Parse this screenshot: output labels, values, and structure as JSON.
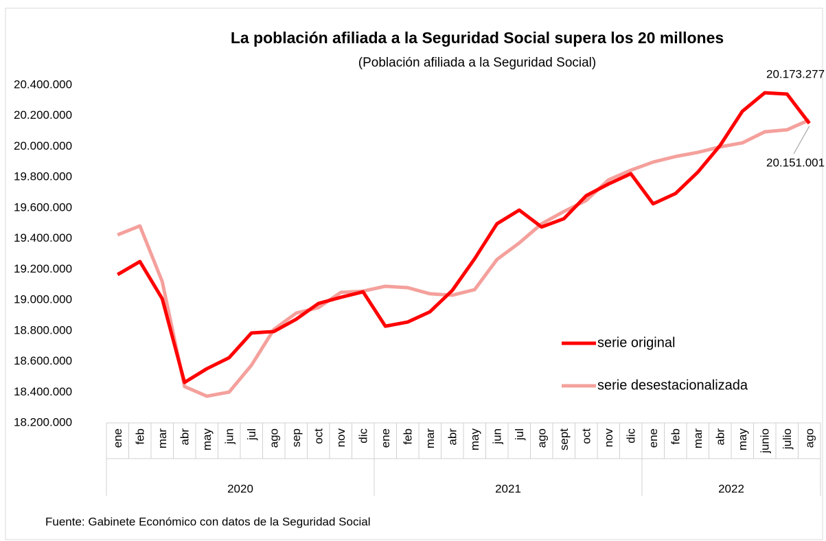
{
  "chart_data": {
    "type": "line",
    "title": "La población afiliada a la Seguridad Social supera los 20 millones",
    "subtitle": "(Población afiliada a la Seguridad Social)",
    "source": "Fuente: Gabinete Económico con datos de la Seguridad Social",
    "groups": [
      {
        "name": "2020",
        "categories": [
          "ene",
          "feb",
          "mar",
          "abr",
          "may",
          "jun",
          "jul",
          "ago",
          "sep",
          "oct",
          "nov",
          "dic"
        ]
      },
      {
        "name": "2021",
        "categories": [
          "ene",
          "feb",
          "mar",
          "abr",
          "may",
          "jun",
          "jul",
          "ago",
          "sept",
          "oct",
          "nov",
          "dic"
        ]
      },
      {
        "name": "2022",
        "categories": [
          "ene",
          "feb",
          "mar",
          "abr",
          "may",
          "junio",
          "julio",
          "ago"
        ]
      }
    ],
    "series": [
      {
        "name": "serie original",
        "color": "#ff0000",
        "values": [
          19166000,
          19251000,
          19009000,
          18464000,
          18553000,
          18625000,
          18786000,
          18795000,
          18875000,
          18978000,
          19018000,
          19054000,
          18830000,
          18857000,
          18924000,
          19063000,
          19269000,
          19497000,
          19586000,
          19476000,
          19530000,
          19680000,
          19756000,
          19823000,
          19627000,
          19694000,
          19833000,
          20007000,
          20230000,
          20350000,
          20342000,
          20151001
        ],
        "value_labels": [
          null,
          null,
          null,
          null,
          null,
          null,
          null,
          null,
          null,
          null,
          null,
          null,
          null,
          null,
          null,
          null,
          null,
          null,
          null,
          null,
          null,
          null,
          null,
          null,
          null,
          null,
          null,
          null,
          null,
          null,
          null,
          "20.151.001"
        ]
      },
      {
        "name": "serie desestacionalizada",
        "color": "#f4a09c",
        "values": [
          19425000,
          19483000,
          19121000,
          18437000,
          18374000,
          18401000,
          18576000,
          18808000,
          18915000,
          18951000,
          19050000,
          19058000,
          19090000,
          19081000,
          19041000,
          19032000,
          19068000,
          19264000,
          19372000,
          19497000,
          19577000,
          19649000,
          19783000,
          19846000,
          19899000,
          19935000,
          19962000,
          19998000,
          20024000,
          20096000,
          20109000,
          20173277
        ],
        "value_labels": [
          null,
          null,
          null,
          null,
          null,
          null,
          null,
          null,
          null,
          null,
          null,
          null,
          null,
          null,
          null,
          null,
          null,
          null,
          null,
          null,
          null,
          null,
          null,
          null,
          null,
          null,
          null,
          null,
          null,
          null,
          null,
          "20.173.277"
        ]
      }
    ],
    "ylim": [
      18200000,
      20400000
    ],
    "yticks": [
      {
        "value": 18200000,
        "label": "18.200.000"
      },
      {
        "value": 18400000,
        "label": "18.400.000"
      },
      {
        "value": 18600000,
        "label": "18.600.000"
      },
      {
        "value": 18800000,
        "label": "18.800.000"
      },
      {
        "value": 19000000,
        "label": "19.000.000"
      },
      {
        "value": 19200000,
        "label": "19.200.000"
      },
      {
        "value": 19400000,
        "label": "19.400.000"
      },
      {
        "value": 19600000,
        "label": "19.600.000"
      },
      {
        "value": 19800000,
        "label": "19.800.000"
      },
      {
        "value": 20000000,
        "label": "20.000.000"
      },
      {
        "value": 20200000,
        "label": "20.200.000"
      },
      {
        "value": 20400000,
        "label": "20.400.000"
      }
    ],
    "grid": false,
    "legend": "right"
  }
}
